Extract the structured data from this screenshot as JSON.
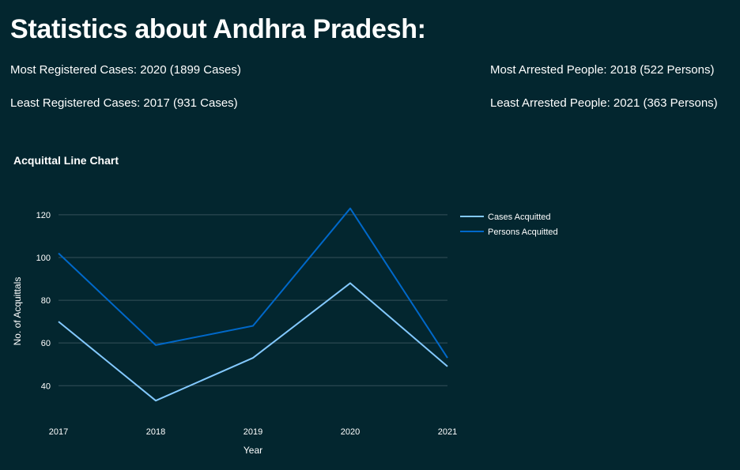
{
  "page": {
    "title": "Statistics about Andhra Pradesh:",
    "stats": {
      "most_registered": "Most Registered Cases: 2020 (1899 Cases)",
      "least_registered": "Least Registered Cases: 2017 (931 Cases)",
      "most_arrested": "Most Arrested People: 2018 (522 Persons)",
      "least_arrested": "Least Arrested People: 2021 (363 Persons)"
    }
  },
  "chart_data": {
    "type": "line",
    "title": "Acquittal Line Chart",
    "xlabel": "Year",
    "ylabel": "No. of Acquittals",
    "categories": [
      "2017",
      "2018",
      "2019",
      "2020",
      "2021"
    ],
    "yticks": [
      40,
      60,
      80,
      100,
      120
    ],
    "ylim": [
      29,
      127
    ],
    "grid": true,
    "legend_position": "right",
    "series": [
      {
        "name": "Cases Acquitted",
        "color": "#83c9ff",
        "values": [
          70,
          33,
          53,
          88,
          49
        ]
      },
      {
        "name": "Persons Acquitted",
        "color": "#0068c9",
        "values": [
          102,
          59,
          68,
          123,
          53
        ]
      }
    ]
  }
}
